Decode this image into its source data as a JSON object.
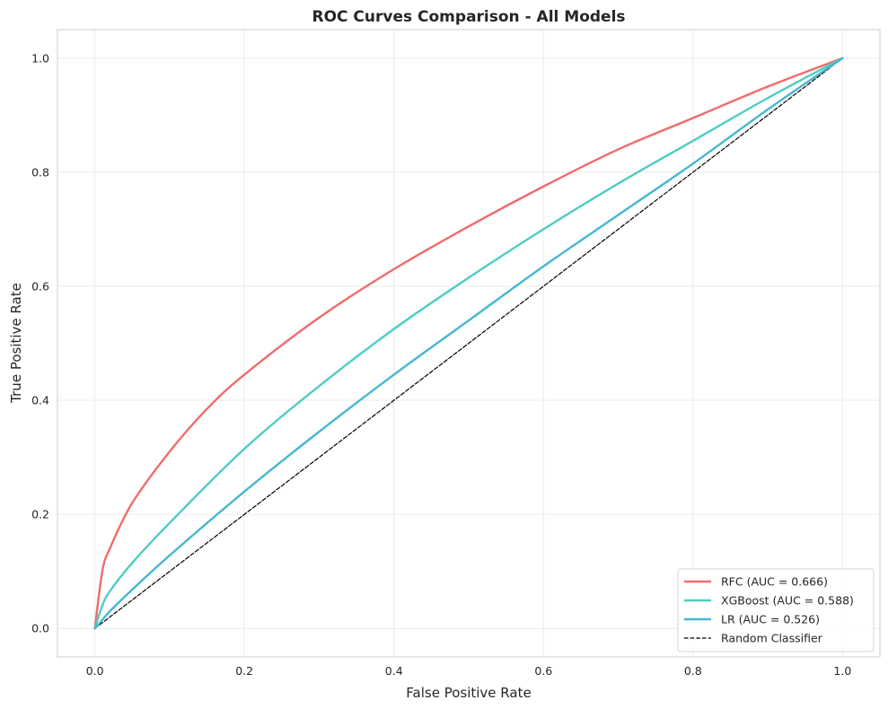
{
  "chart_data": {
    "type": "line",
    "title": "ROC Curves Comparison - All Models",
    "xlabel": "False Positive Rate",
    "ylabel": "True Positive Rate",
    "xlim": [
      -0.05,
      1.05
    ],
    "ylim": [
      -0.05,
      1.05
    ],
    "xticks": [
      "0.0",
      "0.2",
      "0.4",
      "0.6",
      "0.8",
      "1.0"
    ],
    "yticks": [
      "0.0",
      "0.2",
      "0.4",
      "0.6",
      "0.8",
      "1.0"
    ],
    "grid": true,
    "legend_position": "lower-right",
    "series": [
      {
        "name": "RFC (AUC = 0.666)",
        "color": "#f06b6b",
        "dash": "solid",
        "x": [
          0.0,
          0.01,
          0.02,
          0.05,
          0.1,
          0.15,
          0.2,
          0.3,
          0.4,
          0.5,
          0.6,
          0.7,
          0.8,
          0.9,
          1.0
        ],
        "y": [
          0.0,
          0.1,
          0.14,
          0.22,
          0.31,
          0.385,
          0.445,
          0.545,
          0.63,
          0.705,
          0.775,
          0.84,
          0.895,
          0.95,
          1.0
        ]
      },
      {
        "name": "XGBoost (AUC = 0.588)",
        "color": "#4ecdc4",
        "dash": "solid",
        "x": [
          0.0,
          0.01,
          0.02,
          0.05,
          0.1,
          0.2,
          0.3,
          0.4,
          0.5,
          0.6,
          0.7,
          0.8,
          0.9,
          1.0
        ],
        "y": [
          0.0,
          0.04,
          0.065,
          0.115,
          0.185,
          0.315,
          0.425,
          0.525,
          0.615,
          0.7,
          0.78,
          0.855,
          0.93,
          1.0
        ]
      },
      {
        "name": "LR (AUC = 0.526)",
        "color": "#45b7d1",
        "dash": "solid",
        "x": [
          0.0,
          0.01,
          0.02,
          0.05,
          0.1,
          0.2,
          0.3,
          0.4,
          0.5,
          0.6,
          0.7,
          0.8,
          0.9,
          1.0
        ],
        "y": [
          0.0,
          0.015,
          0.03,
          0.068,
          0.128,
          0.24,
          0.345,
          0.445,
          0.54,
          0.635,
          0.725,
          0.815,
          0.91,
          1.0
        ]
      },
      {
        "name": "Random Classifier",
        "color": "#000000",
        "dash": "dashed",
        "x": [
          0.0,
          1.0
        ],
        "y": [
          0.0,
          1.0
        ]
      }
    ]
  }
}
